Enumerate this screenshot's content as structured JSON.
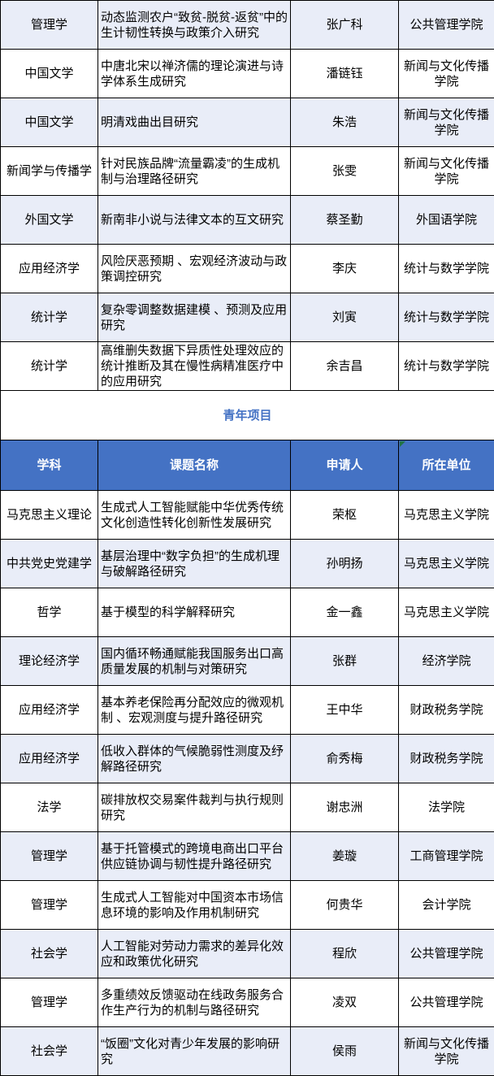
{
  "colors": {
    "header_bg": "#4472C4",
    "header_text": "#FFFFFF",
    "stripe_bg": "#E9EDF8",
    "row_bg": "#FFFFFF",
    "border": "#000000",
    "section_title": "#4472C4",
    "flag_green": "#217346"
  },
  "section": {
    "title": "青年项目"
  },
  "columns": [
    "学科",
    "课题名称",
    "申请人",
    "所在单位"
  ],
  "upper_table": {
    "rows": [
      {
        "discipline": "管理学",
        "title": "动态监测农户“致贫-脱贫-返贫”中的生计韧性转换与政策介入研究",
        "applicant": "张广科",
        "unit": "公共管理学院"
      },
      {
        "discipline": "中国文学",
        "title": "中唐北宋以禅济儒的理论演进与诗学体系生成研究",
        "applicant": "潘链钰",
        "unit": "新闻与文化传播学院"
      },
      {
        "discipline": "中国文学",
        "title": "明清戏曲出目研究",
        "applicant": "朱浩",
        "unit": "新闻与文化传播学院"
      },
      {
        "discipline": "新闻学与传播学",
        "title": "针对民族品牌“流量霸凌”的生成机制与治理路径研究",
        "applicant": "张雯",
        "unit": "新闻与文化传播学院"
      },
      {
        "discipline": "外国文学",
        "title": "新南非小说与法律文本的互文研究",
        "applicant": "蔡圣勤",
        "unit": "外国语学院"
      },
      {
        "discipline": "应用经济学",
        "title": "风险厌恶预期 、宏观经济波动与政策调控研究",
        "applicant": "李庆",
        "unit": "统计与数学学院"
      },
      {
        "discipline": "统计学",
        "title": "复杂零调整数据建模 、预测及应用研究",
        "applicant": "刘寅",
        "unit": "统计与数学学院"
      },
      {
        "discipline": "统计学",
        "title": "高维删失数据下异质性处理效应的统计推断及其在慢性病精准医疗中的应用研究",
        "applicant": "余吉昌",
        "unit": "统计与数学学院"
      }
    ]
  },
  "youth_table": {
    "rows": [
      {
        "discipline": "马克思主义理论",
        "title": "生成式人工智能赋能中华优秀传统文化创造性转化创新性发展研究",
        "applicant": "荣枢",
        "unit": "马克思主义学院"
      },
      {
        "discipline": "中共党史党建学",
        "title": "基层治理中“数字负担”的生成机理与破解路径研究",
        "applicant": "孙明扬",
        "unit": "马克思主义学院"
      },
      {
        "discipline": "哲学",
        "title": "基于模型的科学解释研究",
        "applicant": "金一鑫",
        "unit": "马克思主义学院"
      },
      {
        "discipline": "理论经济学",
        "title": "国内循环畅通赋能我国服务出口高质量发展的机制与对策研究",
        "applicant": "张群",
        "unit": "经济学院"
      },
      {
        "discipline": "应用经济学",
        "title": "基本养老保险再分配效应的微观机制 、宏观测度与提升路径研究",
        "applicant": "王中华",
        "unit": "财政税务学院"
      },
      {
        "discipline": "应用经济学",
        "title": "低收入群体的气候脆弱性测度及纾解路径研究",
        "applicant": "俞秀梅",
        "unit": "财政税务学院"
      },
      {
        "discipline": "法学",
        "title": "碳排放权交易案件裁判与执行规则研究",
        "applicant": "谢忠洲",
        "unit": "法学院"
      },
      {
        "discipline": "管理学",
        "title": "基于托管模式的跨境电商出口平台供应链协调与韧性提升路径研究",
        "applicant": "姜璇",
        "unit": "工商管理学院"
      },
      {
        "discipline": "管理学",
        "title": "生成式人工智能对中国资本市场信息环境的影响及作用机制研究",
        "applicant": "何贵华",
        "unit": "会计学院"
      },
      {
        "discipline": "社会学",
        "title": "人工智能对劳动力需求的差异化效应和政策优化研究",
        "applicant": "程欣",
        "unit": "公共管理学院"
      },
      {
        "discipline": "管理学",
        "title": "多重绩效反馈驱动在线政务服务合作生产行为的机制与路径研究",
        "applicant": "凌双",
        "unit": "公共管理学院"
      },
      {
        "discipline": "社会学",
        "title": "“饭圈”文化对青少年发展的影响研究",
        "applicant": "侯雨",
        "unit": "新闻与文化传播学院"
      }
    ]
  }
}
